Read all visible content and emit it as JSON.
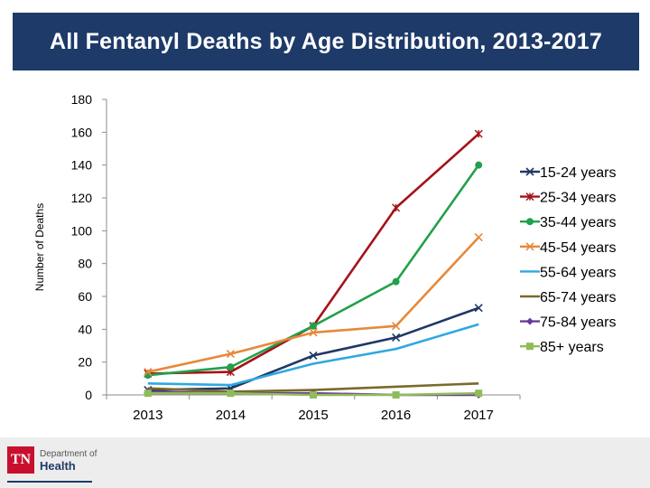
{
  "slide": {
    "title": "All Fentanyl Deaths by Age Distribution, 2013-2017"
  },
  "footer": {
    "logo_mark": "TN",
    "logo_line1": "Department of",
    "logo_line2": "Health"
  },
  "chart_data": {
    "type": "line",
    "title": "All Fentanyl Deaths by Age Distribution, 2013-2017",
    "xlabel": "",
    "ylabel": "Number of Deaths",
    "ylim": [
      0,
      180
    ],
    "yticks": [
      0,
      20,
      40,
      60,
      80,
      100,
      120,
      140,
      160,
      180
    ],
    "grid": false,
    "legend_position": "right",
    "categories": [
      "2013",
      "2014",
      "2015",
      "2016",
      "2017"
    ],
    "series": [
      {
        "name": "15-24 years",
        "color": "#1f3864",
        "marker": "x",
        "values": [
          3,
          4,
          24,
          35,
          53
        ]
      },
      {
        "name": "25-34 years",
        "color": "#a5121a",
        "marker": "star",
        "values": [
          13,
          14,
          42,
          114,
          159
        ]
      },
      {
        "name": "35-44 years",
        "color": "#22a14a",
        "marker": "circle",
        "values": [
          12,
          17,
          42,
          69,
          140
        ]
      },
      {
        "name": "45-54 years",
        "color": "#e6893a",
        "marker": "x",
        "values": [
          14,
          25,
          38,
          42,
          96
        ]
      },
      {
        "name": "55-64 years",
        "color": "#2fa8e0",
        "marker": "none",
        "values": [
          7,
          6,
          19,
          28,
          43
        ]
      },
      {
        "name": "65-74 years",
        "color": "#7a6a2a",
        "marker": "none",
        "values": [
          4,
          2,
          3,
          5,
          7
        ]
      },
      {
        "name": "75-84 years",
        "color": "#6a3a99",
        "marker": "diamond",
        "values": [
          2,
          1,
          1,
          0,
          0
        ]
      },
      {
        "name": "85+ years",
        "color": "#8fbc5a",
        "marker": "square",
        "values": [
          1,
          1,
          0,
          0,
          1
        ]
      }
    ]
  }
}
